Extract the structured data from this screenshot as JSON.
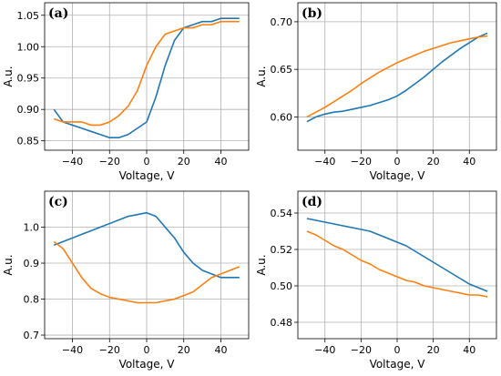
{
  "chart_data": [
    {
      "type": "line",
      "panel_label": "(a)",
      "xlabel": "Voltage, V",
      "ylabel": "A.u.",
      "xlim": [
        -55,
        55
      ],
      "ylim": [
        0.835,
        1.07
      ],
      "xticks": [
        -40,
        -20,
        0,
        20,
        40
      ],
      "yticks": [
        0.85,
        0.9,
        0.95,
        1.0,
        1.05
      ],
      "ytick_labels": [
        "0.85",
        "0.90",
        "0.95",
        "1.00",
        "1.05"
      ],
      "grid": true,
      "series": [
        {
          "color": "#1f77b4",
          "x": [
            -50,
            -45,
            -40,
            -35,
            -30,
            -25,
            -20,
            -15,
            -10,
            -5,
            0,
            5,
            10,
            15,
            20,
            25,
            30,
            35,
            40,
            45,
            50
          ],
          "y": [
            0.9,
            0.88,
            0.875,
            0.87,
            0.865,
            0.86,
            0.855,
            0.855,
            0.86,
            0.87,
            0.88,
            0.92,
            0.97,
            1.01,
            1.03,
            1.035,
            1.04,
            1.04,
            1.045,
            1.045,
            1.045
          ]
        },
        {
          "color": "#ff7f0e",
          "x": [
            -50,
            -45,
            -40,
            -35,
            -30,
            -25,
            -20,
            -15,
            -10,
            -5,
            0,
            5,
            10,
            15,
            20,
            25,
            30,
            35,
            40,
            45,
            50
          ],
          "y": [
            0.885,
            0.88,
            0.88,
            0.88,
            0.875,
            0.875,
            0.88,
            0.89,
            0.905,
            0.93,
            0.97,
            1.0,
            1.02,
            1.025,
            1.03,
            1.03,
            1.035,
            1.035,
            1.04,
            1.04,
            1.04
          ]
        }
      ]
    },
    {
      "type": "line",
      "panel_label": "(b)",
      "xlabel": "Voltage, V",
      "ylabel": "A.u.",
      "xlim": [
        -55,
        55
      ],
      "ylim": [
        0.565,
        0.72
      ],
      "xticks": [
        -40,
        -20,
        0,
        20,
        40
      ],
      "yticks": [
        0.6,
        0.65,
        0.7
      ],
      "ytick_labels": [
        "0.60",
        "0.65",
        "0.70"
      ],
      "grid": true,
      "series": [
        {
          "color": "#1f77b4",
          "x": [
            -50,
            -45,
            -40,
            -35,
            -30,
            -25,
            -20,
            -15,
            -10,
            -5,
            0,
            5,
            10,
            15,
            20,
            25,
            30,
            35,
            40,
            45,
            50
          ],
          "y": [
            0.595,
            0.6,
            0.603,
            0.605,
            0.606,
            0.608,
            0.61,
            0.612,
            0.615,
            0.618,
            0.622,
            0.628,
            0.635,
            0.642,
            0.65,
            0.658,
            0.665,
            0.672,
            0.678,
            0.684,
            0.688
          ]
        },
        {
          "color": "#ff7f0e",
          "x": [
            -50,
            -45,
            -40,
            -35,
            -30,
            -25,
            -20,
            -15,
            -10,
            -5,
            0,
            5,
            10,
            15,
            20,
            25,
            30,
            35,
            40,
            45,
            50
          ],
          "y": [
            0.6,
            0.605,
            0.61,
            0.616,
            0.622,
            0.628,
            0.635,
            0.641,
            0.647,
            0.652,
            0.657,
            0.661,
            0.665,
            0.669,
            0.672,
            0.675,
            0.678,
            0.68,
            0.682,
            0.684,
            0.685
          ]
        }
      ]
    },
    {
      "type": "line",
      "panel_label": "(c)",
      "xlabel": "Voltage, V",
      "ylabel": "A.u.",
      "xlim": [
        -55,
        55
      ],
      "ylim": [
        0.69,
        1.1
      ],
      "xticks": [
        -40,
        -20,
        0,
        20,
        40
      ],
      "yticks": [
        0.7,
        0.8,
        0.9,
        1.0
      ],
      "ytick_labels": [
        "0.7",
        "0.8",
        "0.9",
        "1.0"
      ],
      "grid": true,
      "series": [
        {
          "color": "#1f77b4",
          "x": [
            -50,
            -45,
            -40,
            -35,
            -30,
            -25,
            -20,
            -15,
            -10,
            -5,
            0,
            5,
            10,
            15,
            20,
            25,
            30,
            35,
            40,
            45,
            50
          ],
          "y": [
            0.95,
            0.96,
            0.97,
            0.98,
            0.99,
            1.0,
            1.01,
            1.02,
            1.03,
            1.035,
            1.04,
            1.03,
            1.0,
            0.97,
            0.93,
            0.9,
            0.88,
            0.87,
            0.86,
            0.86,
            0.86
          ]
        },
        {
          "color": "#ff7f0e",
          "x": [
            -50,
            -45,
            -40,
            -35,
            -30,
            -25,
            -20,
            -15,
            -10,
            -5,
            0,
            5,
            10,
            15,
            20,
            25,
            30,
            35,
            40,
            45,
            50
          ],
          "y": [
            0.96,
            0.94,
            0.9,
            0.86,
            0.83,
            0.815,
            0.805,
            0.8,
            0.795,
            0.79,
            0.79,
            0.79,
            0.795,
            0.8,
            0.81,
            0.82,
            0.84,
            0.86,
            0.87,
            0.88,
            0.89
          ]
        }
      ]
    },
    {
      "type": "line",
      "panel_label": "(d)",
      "xlabel": "Voltage, V",
      "ylabel": "A.u.",
      "xlim": [
        -55,
        55
      ],
      "ylim": [
        0.471,
        0.552
      ],
      "xticks": [
        -40,
        -20,
        0,
        20,
        40
      ],
      "yticks": [
        0.48,
        0.5,
        0.52,
        0.54
      ],
      "ytick_labels": [
        "0.48",
        "0.50",
        "0.52",
        "0.54"
      ],
      "grid": true,
      "series": [
        {
          "color": "#1f77b4",
          "x": [
            -50,
            -45,
            -40,
            -35,
            -30,
            -25,
            -20,
            -15,
            -10,
            -5,
            0,
            5,
            10,
            15,
            20,
            25,
            30,
            35,
            40,
            45,
            50
          ],
          "y": [
            0.537,
            0.536,
            0.535,
            0.534,
            0.533,
            0.532,
            0.531,
            0.53,
            0.528,
            0.526,
            0.524,
            0.522,
            0.519,
            0.516,
            0.513,
            0.51,
            0.507,
            0.504,
            0.501,
            0.499,
            0.497
          ]
        },
        {
          "color": "#ff7f0e",
          "x": [
            -50,
            -45,
            -40,
            -35,
            -30,
            -25,
            -20,
            -15,
            -10,
            -5,
            0,
            5,
            10,
            15,
            20,
            25,
            30,
            35,
            40,
            45,
            50
          ],
          "y": [
            0.53,
            0.528,
            0.525,
            0.522,
            0.52,
            0.517,
            0.514,
            0.512,
            0.509,
            0.507,
            0.505,
            0.503,
            0.502,
            0.5,
            0.499,
            0.498,
            0.497,
            0.496,
            0.495,
            0.495,
            0.494
          ]
        }
      ]
    }
  ]
}
